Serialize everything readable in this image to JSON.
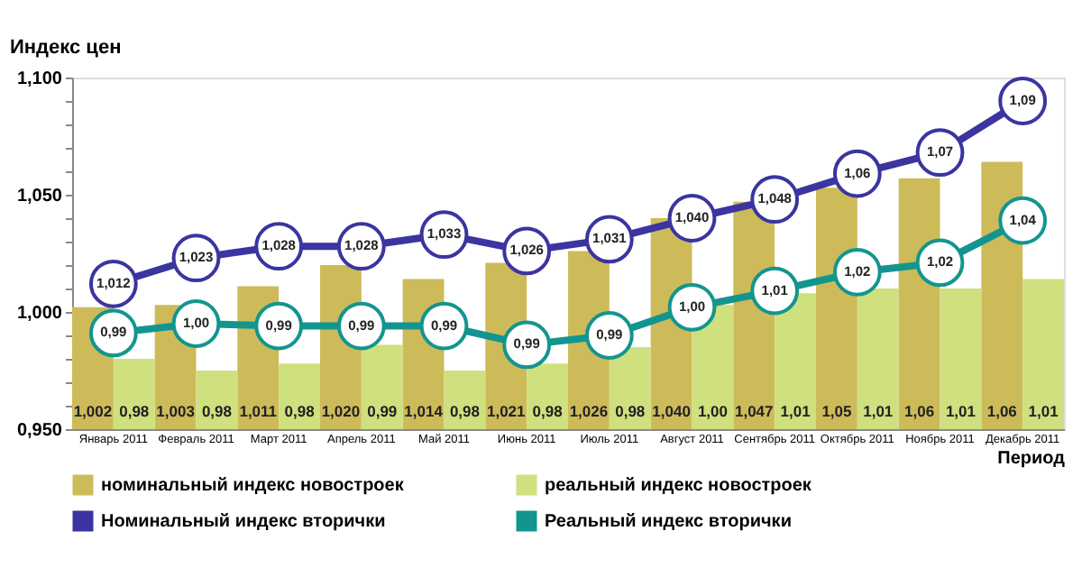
{
  "chart_data": {
    "type": "bar",
    "ylabel": "Индекс цен",
    "xlabel": "Период",
    "categories": [
      "Январь 2011",
      "Февраль 2011",
      "Март 2011",
      "Апрель 2011",
      "Май 2011",
      "Июнь 2011",
      "Июль 2011",
      "Август 2011",
      "Сентябрь 2011",
      "Октябрь 2011",
      "Ноябрь 2011",
      "Декабрь 2011"
    ],
    "series": [
      {
        "name": "номинальный индекс новостроек",
        "type": "bar",
        "color": "#cdbb5a",
        "values": [
          1.002,
          1.003,
          1.011,
          1.02,
          1.014,
          1.021,
          1.026,
          1.04,
          1.047,
          1.053,
          1.057,
          1.064
        ],
        "value_labels": [
          "1,002",
          "1,003",
          "1,011",
          "1,020",
          "1,014",
          "1,021",
          "1,026",
          "1,040",
          "1,047",
          "1,05",
          "1,06",
          "1,06"
        ]
      },
      {
        "name": "реальный индекс новостроек",
        "type": "bar",
        "color": "#cfe07e",
        "values": [
          0.98,
          0.975,
          0.978,
          0.986,
          0.975,
          0.978,
          0.985,
          1.003,
          1.008,
          1.01,
          1.01,
          1.014
        ],
        "value_labels": [
          "0,98",
          "0,98",
          "0,98",
          "0,99",
          "0,98",
          "0,98",
          "0,98",
          "1,00",
          "1,01",
          "1,01",
          "1,01",
          "1,01"
        ]
      },
      {
        "name": "Номинальный индекс вторички",
        "type": "line",
        "color": "#3a35a0",
        "marker": "circle",
        "values": [
          1.012,
          1.023,
          1.028,
          1.028,
          1.033,
          1.026,
          1.031,
          1.04,
          1.048,
          1.059,
          1.068,
          1.09
        ],
        "value_labels": [
          "1,012",
          "1,023",
          "1,028",
          "1,028",
          "1,033",
          "1,026",
          "1,031",
          "1,040",
          "1,048",
          "1,06",
          "1,07",
          "1,09"
        ]
      },
      {
        "name": "Реальный индекс вторички",
        "type": "line",
        "color": "#13958f",
        "marker": "circle",
        "values": [
          0.991,
          0.995,
          0.994,
          0.994,
          0.994,
          0.986,
          0.99,
          1.002,
          1.009,
          1.017,
          1.021,
          1.039
        ],
        "value_labels": [
          "0,99",
          "1,00",
          "0,99",
          "0,99",
          "0,99",
          "0,99",
          "0,99",
          "1,00",
          "1,01",
          "1,02",
          "1,02",
          "1,04"
        ]
      }
    ],
    "ylim": [
      0.95,
      1.1
    ],
    "yticks": [
      {
        "value": 0.95,
        "label": "0,950"
      },
      {
        "value": 0.96,
        "label": null
      },
      {
        "value": 0.97,
        "label": null
      },
      {
        "value": 0.98,
        "label": null
      },
      {
        "value": 0.99,
        "label": null
      },
      {
        "value": 1.0,
        "label": "1,000"
      },
      {
        "value": 1.01,
        "label": null
      },
      {
        "value": 1.02,
        "label": null
      },
      {
        "value": 1.03,
        "label": null
      },
      {
        "value": 1.04,
        "label": null
      },
      {
        "value": 1.05,
        "label": "1,050"
      },
      {
        "value": 1.06,
        "label": null
      },
      {
        "value": 1.07,
        "label": null
      },
      {
        "value": 1.08,
        "label": null
      },
      {
        "value": 1.09,
        "label": null
      },
      {
        "value": 1.1,
        "label": "1,100"
      }
    ],
    "grid": false,
    "legend": "bottom"
  }
}
